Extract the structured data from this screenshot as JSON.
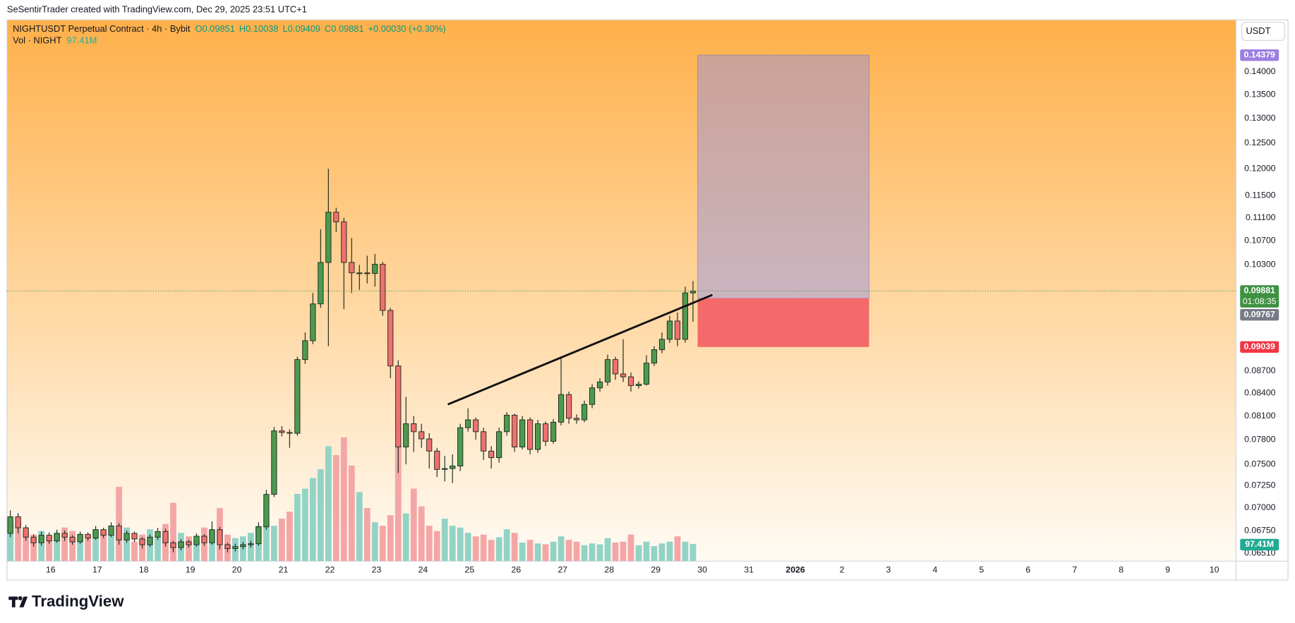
{
  "chart_data": {
    "type": "candlestick",
    "byline": "SeSentirTrader created with TradingView.com, Dec 29, 2025 23:51 UTC+1",
    "title": "NIGHTUSDT Perpetual Contract · 4h · Bybit",
    "legend_ohlc": [
      "O0.09851",
      "H0.10038",
      "L0.09409",
      "C0.09881",
      "+0.00030 (+0.30%)"
    ],
    "volume_legend": "Vol · NIGHT",
    "volume_label": "97.41M",
    "currency": "USDT",
    "countdown": "01:08:35",
    "brand": "TradingView",
    "log": true,
    "grid": false,
    "up_color": "#4c9a50",
    "down_color": "#f07070",
    "volume_up_color": "#93d3c6",
    "volume_down_color": "#f4a6a6",
    "xlim": [
      -0.43,
      158
    ],
    "ylim": [
      0.0643,
      0.1521
    ],
    "xticks": [
      {
        "value": 5.2,
        "label": "16"
      },
      {
        "value": 11.2,
        "label": "17"
      },
      {
        "value": 17.2,
        "label": "18"
      },
      {
        "value": 23.2,
        "label": "19"
      },
      {
        "value": 29.2,
        "label": "20"
      },
      {
        "value": 35.2,
        "label": "21"
      },
      {
        "value": 41.2,
        "label": "22"
      },
      {
        "value": 47.2,
        "label": "23"
      },
      {
        "value": 53.2,
        "label": "24"
      },
      {
        "value": 59.2,
        "label": "25"
      },
      {
        "value": 65.2,
        "label": "26"
      },
      {
        "value": 71.2,
        "label": "27"
      },
      {
        "value": 77.2,
        "label": "28"
      },
      {
        "value": 83.2,
        "label": "29"
      },
      {
        "value": 89.2,
        "label": "30"
      },
      {
        "value": 95.2,
        "label": "31"
      },
      {
        "value": 101.2,
        "label": "2026"
      },
      {
        "value": 107.2,
        "label": "2"
      },
      {
        "value": 113.2,
        "label": "3"
      },
      {
        "value": 119.2,
        "label": "4"
      },
      {
        "value": 125.2,
        "label": "5"
      },
      {
        "value": 131.2,
        "label": "6"
      },
      {
        "value": 137.2,
        "label": "7"
      },
      {
        "value": 143.2,
        "label": "8"
      },
      {
        "value": 149.2,
        "label": "9"
      },
      {
        "value": 155.2,
        "label": "10"
      }
    ],
    "yticks": [
      {
        "value": 0.0651,
        "label": "0.06510"
      },
      {
        "value": 0.0675,
        "label": "0.06750"
      },
      {
        "value": 0.07,
        "label": "0.07000"
      },
      {
        "value": 0.0725,
        "label": "0.07250"
      },
      {
        "value": 0.075,
        "label": "0.07500"
      },
      {
        "value": 0.078,
        "label": "0.07800"
      },
      {
        "value": 0.081,
        "label": "0.08100"
      },
      {
        "value": 0.084,
        "label": "0.08400"
      },
      {
        "value": 0.087,
        "label": "0.08700"
      },
      {
        "value": 0.103,
        "label": "0.10300"
      },
      {
        "value": 0.107,
        "label": "0.10700"
      },
      {
        "value": 0.111,
        "label": "0.11100"
      },
      {
        "value": 0.115,
        "label": "0.11500"
      },
      {
        "value": 0.12,
        "label": "0.12000"
      },
      {
        "value": 0.125,
        "label": "0.12500"
      },
      {
        "value": 0.13,
        "label": "0.13000"
      },
      {
        "value": 0.135,
        "label": "0.13500"
      },
      {
        "value": 0.14,
        "label": "0.14000"
      }
    ],
    "open": [
      0.0672,
      0.069,
      0.0678,
      0.0668,
      0.0662,
      0.067,
      0.0664,
      0.0672,
      0.0668,
      0.0663,
      0.0671,
      0.0667,
      0.0676,
      0.067,
      0.068,
      0.0665,
      0.0672,
      0.0666,
      0.066,
      0.0668,
      0.0674,
      0.0662,
      0.0657,
      0.0663,
      0.066,
      0.0669,
      0.0662,
      0.0676,
      0.066,
      0.0656,
      0.0658,
      0.066,
      0.0661,
      0.0679,
      0.0715,
      0.0791,
      0.0789,
      0.0788,
      0.0886,
      0.0913,
      0.0968,
      0.1034,
      0.112,
      0.1103,
      0.1034,
      0.1017,
      0.1017,
      0.1016,
      0.1031,
      0.0958,
      0.0877,
      0.0771,
      0.08,
      0.079,
      0.0781,
      0.0766,
      0.0744,
      0.0745,
      0.0748,
      0.0795,
      0.0805,
      0.079,
      0.0766,
      0.0758,
      0.079,
      0.0811,
      0.0771,
      0.0805,
      0.0768,
      0.08,
      0.0778,
      0.0802,
      0.0838,
      0.0807,
      0.0805,
      0.0825,
      0.0847,
      0.0855,
      0.0886,
      0.0866,
      0.0862,
      0.085,
      0.0852,
      0.0881,
      0.09,
      0.0915,
      0.0942,
      0.0915,
      0.09851
    ],
    "high": [
      0.0697,
      0.0694,
      0.0681,
      0.0671,
      0.0674,
      0.0673,
      0.0676,
      0.0675,
      0.067,
      0.0674,
      0.0673,
      0.068,
      0.0678,
      0.0684,
      0.0683,
      0.0675,
      0.0674,
      0.0668,
      0.0671,
      0.0678,
      0.0677,
      0.0664,
      0.0666,
      0.0665,
      0.0672,
      0.0671,
      0.0685,
      0.0679,
      0.0662,
      0.0661,
      0.0663,
      0.0664,
      0.0684,
      0.072,
      0.0796,
      0.0797,
      0.0793,
      0.089,
      0.0925,
      0.0985,
      0.109,
      0.12,
      0.1128,
      0.111,
      0.1075,
      0.103,
      0.1045,
      0.1048,
      0.1035,
      0.0962,
      0.0885,
      0.0835,
      0.081,
      0.08,
      0.0788,
      0.077,
      0.076,
      0.0762,
      0.08,
      0.082,
      0.0808,
      0.0795,
      0.0772,
      0.0795,
      0.0815,
      0.0813,
      0.081,
      0.0808,
      0.0805,
      0.0803,
      0.0806,
      0.089,
      0.0842,
      0.0812,
      0.083,
      0.0852,
      0.086,
      0.0893,
      0.089,
      0.0915,
      0.0868,
      0.0856,
      0.0892,
      0.0905,
      0.0925,
      0.095,
      0.0955,
      0.0995,
      0.10038
    ],
    "low": [
      0.0668,
      0.0672,
      0.0664,
      0.0658,
      0.0659,
      0.0661,
      0.0662,
      0.0664,
      0.066,
      0.0661,
      0.0664,
      0.0665,
      0.0667,
      0.0668,
      0.066,
      0.0662,
      0.0663,
      0.0656,
      0.0658,
      0.0665,
      0.0658,
      0.0652,
      0.0654,
      0.0657,
      0.0658,
      0.0659,
      0.066,
      0.0655,
      0.0652,
      0.0653,
      0.0655,
      0.0657,
      0.0659,
      0.0676,
      0.0712,
      0.0784,
      0.077,
      0.0785,
      0.088,
      0.0908,
      0.0962,
      0.0905,
      0.1085,
      0.096,
      0.0985,
      0.099,
      0.1,
      0.0995,
      0.095,
      0.086,
      0.074,
      0.075,
      0.0765,
      0.077,
      0.0745,
      0.0735,
      0.073,
      0.0728,
      0.0742,
      0.079,
      0.078,
      0.0755,
      0.0745,
      0.0752,
      0.0785,
      0.0765,
      0.0768,
      0.0762,
      0.0764,
      0.0772,
      0.0775,
      0.0798,
      0.08,
      0.08,
      0.0802,
      0.082,
      0.0842,
      0.085,
      0.0858,
      0.0855,
      0.0842,
      0.0846,
      0.085,
      0.0877,
      0.0895,
      0.091,
      0.0905,
      0.091,
      0.09409
    ],
    "close": [
      0.069,
      0.0678,
      0.0668,
      0.0662,
      0.067,
      0.0664,
      0.0672,
      0.0668,
      0.0663,
      0.0671,
      0.0667,
      0.0676,
      0.067,
      0.068,
      0.0665,
      0.0672,
      0.0666,
      0.066,
      0.0668,
      0.0674,
      0.0662,
      0.0657,
      0.0663,
      0.066,
      0.0669,
      0.0662,
      0.0676,
      0.066,
      0.0656,
      0.0658,
      0.066,
      0.0661,
      0.0679,
      0.0715,
      0.0791,
      0.0789,
      0.0788,
      0.0886,
      0.0913,
      0.0968,
      0.1034,
      0.112,
      0.1103,
      0.1034,
      0.1017,
      0.1017,
      0.1016,
      0.1031,
      0.0958,
      0.0877,
      0.0771,
      0.08,
      0.079,
      0.0781,
      0.0766,
      0.0744,
      0.0745,
      0.0748,
      0.0795,
      0.0805,
      0.079,
      0.0766,
      0.0758,
      0.079,
      0.0811,
      0.0771,
      0.0805,
      0.0768,
      0.08,
      0.0778,
      0.0802,
      0.0838,
      0.0807,
      0.0805,
      0.0825,
      0.0847,
      0.0855,
      0.0886,
      0.0866,
      0.0862,
      0.085,
      0.0852,
      0.0881,
      0.09,
      0.0915,
      0.0942,
      0.0915,
      0.09851,
      0.09881
    ],
    "volume": [
      230,
      220,
      160,
      150,
      170,
      140,
      160,
      190,
      170,
      150,
      140,
      180,
      175,
      150,
      420,
      190,
      110,
      150,
      180,
      140,
      210,
      330,
      160,
      140,
      120,
      190,
      170,
      300,
      150,
      130,
      140,
      160,
      200,
      210,
      200,
      240,
      280,
      380,
      410,
      470,
      520,
      650,
      600,
      700,
      540,
      390,
      300,
      220,
      200,
      260,
      660,
      270,
      410,
      310,
      200,
      170,
      240,
      200,
      190,
      160,
      140,
      150,
      120,
      135,
      180,
      160,
      105,
      120,
      100,
      95,
      110,
      140,
      120,
      110,
      90,
      100,
      95,
      130,
      105,
      110,
      150,
      90,
      110,
      85,
      100,
      110,
      140,
      110,
      97.41
    ],
    "trendline": {
      "x": [
        56.4,
        90.5
      ],
      "y": [
        0.0825,
        0.0982
      ]
    },
    "position": {
      "x": [
        88.6,
        110.7
      ],
      "entry": 0.09767,
      "target": 0.14379,
      "stop": 0.09039
    }
  }
}
